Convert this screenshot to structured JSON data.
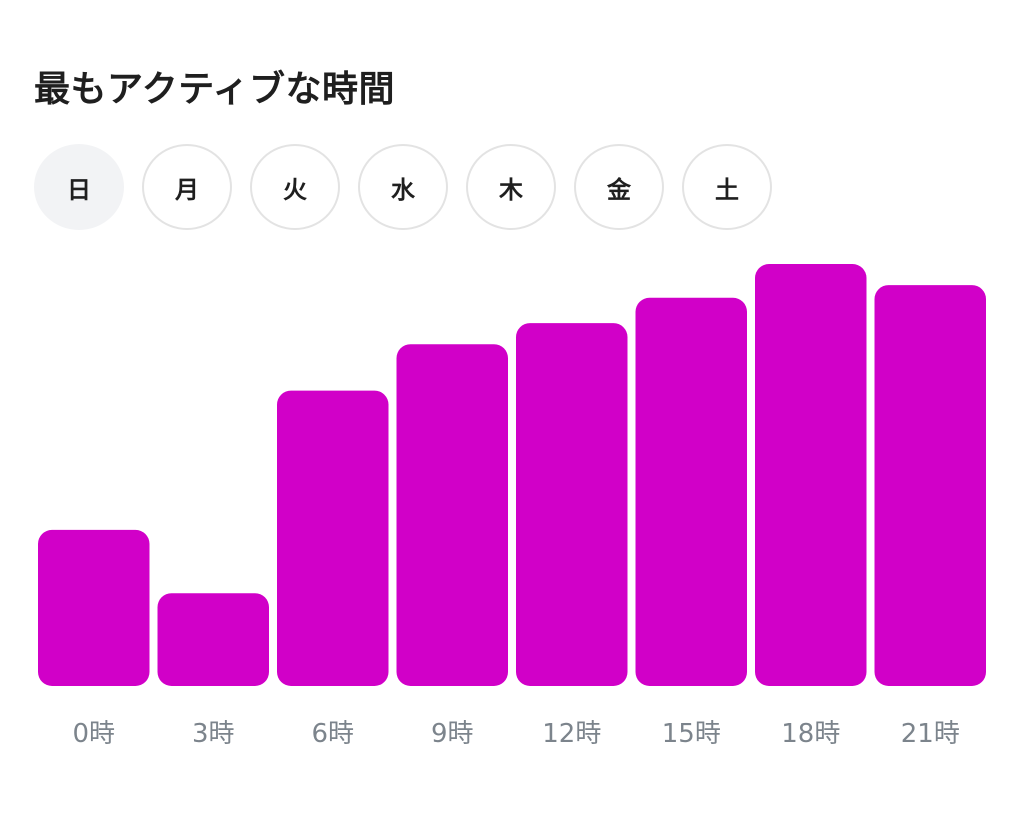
{
  "title": "最もアクティブな時間",
  "days": {
    "selected_index": 0,
    "items": [
      {
        "label": "日"
      },
      {
        "label": "月"
      },
      {
        "label": "火"
      },
      {
        "label": "水"
      },
      {
        "label": "木"
      },
      {
        "label": "金"
      },
      {
        "label": "土"
      }
    ]
  },
  "colors": {
    "bar": "#d100c8",
    "tick_text": "#7c848c",
    "tab_border": "#e3e3e3",
    "tab_selected_bg": "#f2f3f5"
  },
  "chart_data": {
    "type": "bar",
    "categories": [
      "0時",
      "3時",
      "6時",
      "9時",
      "12時",
      "15時",
      "18時",
      "21時"
    ],
    "values": [
      37,
      22,
      70,
      81,
      86,
      92,
      100,
      95
    ],
    "title": "",
    "xlabel": "",
    "ylabel": "",
    "ylim": [
      0,
      100
    ],
    "grid": false,
    "legend": "none"
  }
}
